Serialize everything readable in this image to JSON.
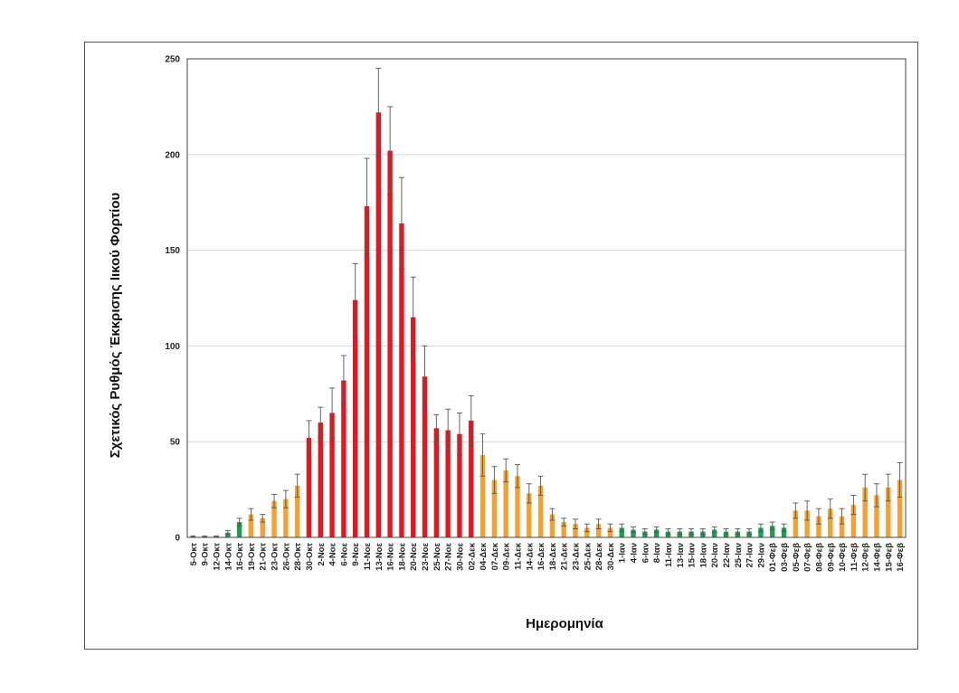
{
  "chart_data": {
    "type": "bar",
    "title": "",
    "xlabel": "Ημερομηνία",
    "ylabel": "Σχετικός Ρυθμός Έκκρισης Ιικού Φορτίου",
    "ylim": [
      0,
      250
    ],
    "yticks": [
      0,
      50,
      100,
      150,
      200,
      250
    ],
    "grid": true,
    "legend": "none",
    "colors": {
      "low": "#1e9c50",
      "mid": "#f5a032",
      "high": "#e8141e",
      "error": "#555555"
    },
    "categories": [
      "5-Οκτ",
      "9-Οκτ",
      "12-Οκτ",
      "14-Οκτ",
      "16-Οκτ",
      "19-Οκτ",
      "21-Οκτ",
      "23-Οκτ",
      "26-Οκτ",
      "28-Οκτ",
      "30-Οκτ",
      "2-Νοε",
      "4-Νοε",
      "6-Νοε",
      "9-Νοε",
      "11-Νοε",
      "13-Νοε",
      "16-Νοε",
      "18-Νοε",
      "20-Νοε",
      "23-Νοε",
      "25-Νοε",
      "27-Νοε",
      "30-Νοε",
      "02-Δεκ",
      "04-Δεκ",
      "07-Δεκ",
      "09-Δεκ",
      "11-Δεκ",
      "14-Δεκ",
      "16-Δεκ",
      "18-Δεκ",
      "21-Δεκ",
      "23-Δεκ",
      "25-Δεκ",
      "28-Δεκ",
      "30-Δεκ",
      "1-Ιαν",
      "4-Ιαν",
      "6-Ιαν",
      "8-Ιαν",
      "11-Ιαν",
      "13-Ιαν",
      "15-Ιαν",
      "18-Ιαν",
      "20-Ιαν",
      "22-Ιαν",
      "25-Ιαν",
      "27-Ιαν",
      "29-Ιαν",
      "01-Φεβ",
      "03-Φεβ",
      "05-Φεβ",
      "07-Φεβ",
      "08-Φεβ",
      "09-Φεβ",
      "10-Φεβ",
      "11-Φεβ",
      "12-Φεβ",
      "14-Φεβ",
      "15-Φεβ",
      "16-Φεβ"
    ],
    "values": [
      0.5,
      0.5,
      0.5,
      2.5,
      8,
      12,
      10,
      19,
      20,
      27,
      52,
      60,
      65,
      82,
      124,
      173,
      222,
      202,
      164,
      115,
      84,
      57,
      56,
      54,
      61,
      43,
      30,
      35,
      32,
      23,
      27,
      12,
      8,
      7,
      5,
      7,
      5,
      5,
      4,
      3,
      4,
      3,
      3,
      3,
      3,
      4,
      3,
      3,
      3,
      5,
      6,
      5,
      14,
      14,
      11,
      15,
      11,
      17,
      26,
      22,
      26,
      30
    ],
    "errors": [
      0.3,
      0.3,
      0.3,
      1,
      2,
      3,
      2,
      3.5,
      4.5,
      6,
      9,
      8,
      13,
      13,
      19,
      25,
      23,
      23,
      24,
      21,
      16,
      7,
      11,
      11,
      13,
      11,
      7,
      6,
      6,
      5,
      5,
      3,
      2,
      2.5,
      2,
      2.5,
      2,
      2,
      1.5,
      1.5,
      1.5,
      1.5,
      1.5,
      1.5,
      1.5,
      1.5,
      1.5,
      1.5,
      1.5,
      2,
      2,
      2,
      4,
      5,
      4,
      5,
      4,
      5,
      7,
      6,
      7,
      9
    ],
    "bar_color_levels": [
      "low",
      "low",
      "low",
      "low",
      "low",
      "mid",
      "mid",
      "mid",
      "mid",
      "mid",
      "high",
      "high",
      "high",
      "high",
      "high",
      "high",
      "high",
      "high",
      "high",
      "high",
      "high",
      "high",
      "high",
      "high",
      "high",
      "mid",
      "mid",
      "mid",
      "mid",
      "mid",
      "mid",
      "mid",
      "mid",
      "mid",
      "mid",
      "mid",
      "mid",
      "low",
      "low",
      "low",
      "low",
      "low",
      "low",
      "low",
      "low",
      "low",
      "low",
      "low",
      "low",
      "low",
      "low",
      "low",
      "mid",
      "mid",
      "mid",
      "mid",
      "mid",
      "mid",
      "mid",
      "mid",
      "mid",
      "mid"
    ]
  }
}
